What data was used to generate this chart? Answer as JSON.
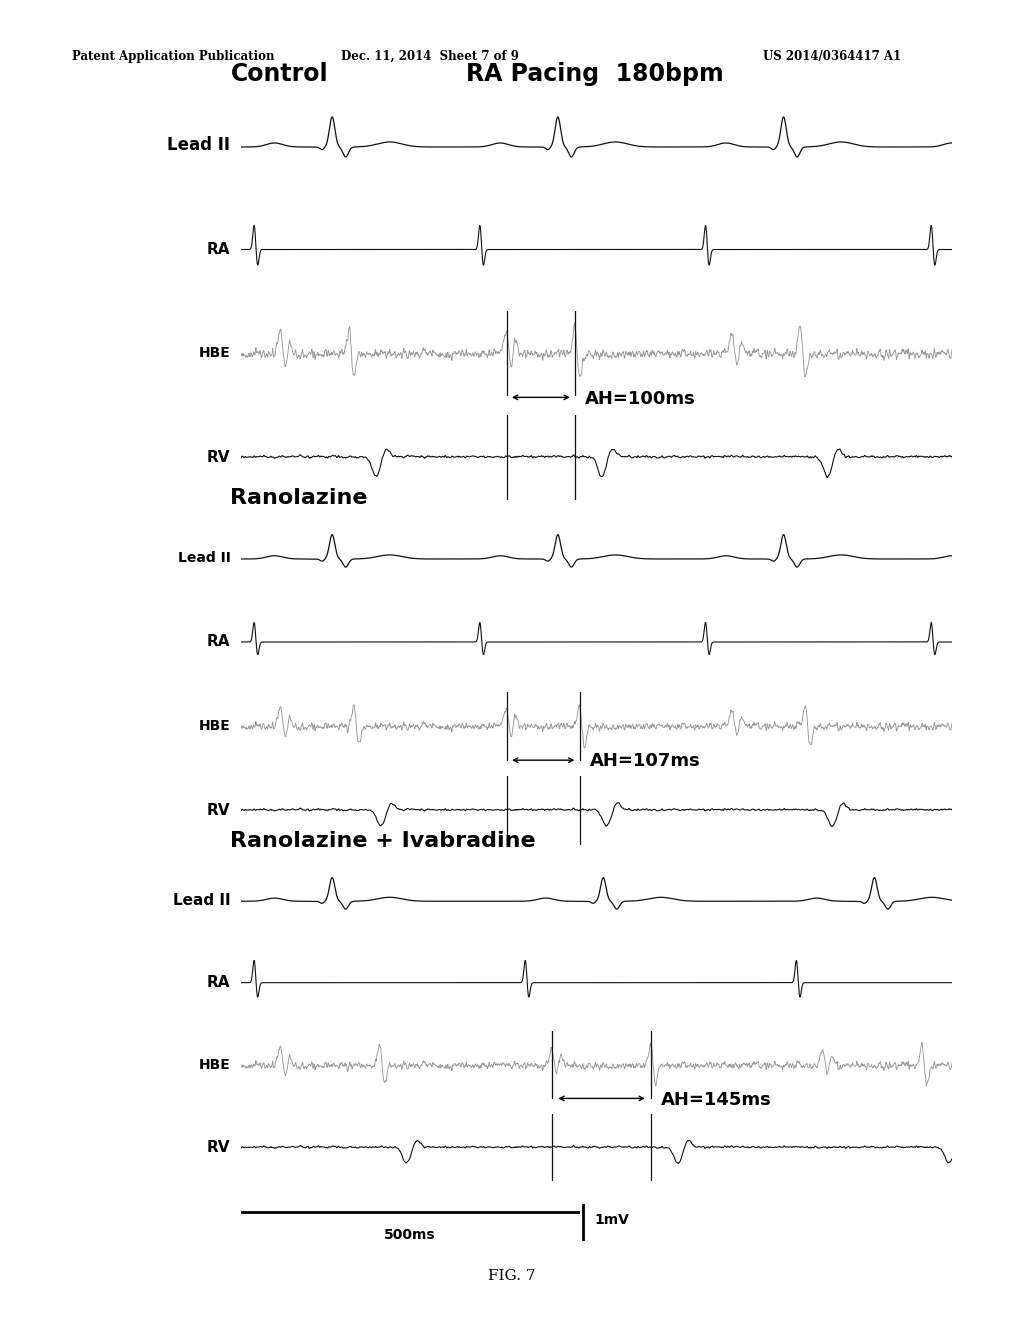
{
  "bg_color": "#ffffff",
  "header_left": "Patent Application Publication",
  "header_center": "Dec. 11, 2014  Sheet 7 of 9",
  "header_right": "US 2014/0364417 A1",
  "footer": "FIG. 7",
  "panel1_title_left": "Control",
  "panel1_title_right": "RA Pacing  180bpm",
  "panel2_title": "Ranolazine",
  "panel3_title": "Ranolazine + Ivabradine",
  "ah_label1": "AH=100ms",
  "ah_label2": "AH=107ms",
  "ah_label3": "AH=145ms",
  "scale_time": "500ms",
  "scale_voltage": "1mV",
  "trace_labels": [
    "Lead II",
    "RA",
    "HBE",
    "RV"
  ],
  "lead2_color": "#111111",
  "ra_color": "#111111",
  "hbe_color": "#999999",
  "rv_color": "#111111",
  "vline_color": "#111111"
}
